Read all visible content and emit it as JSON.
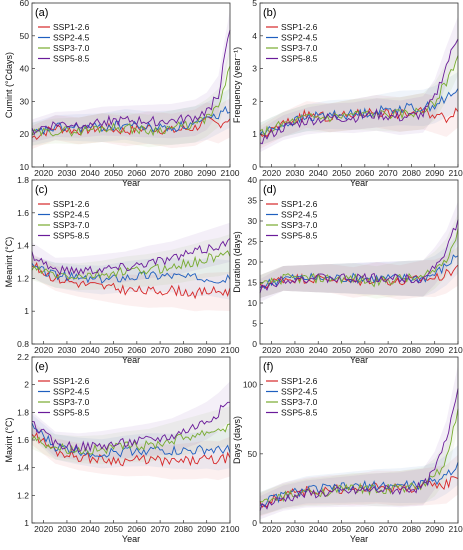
{
  "series_names": [
    "SSP1-2.6",
    "SSP2-4.5",
    "SSP3-7.0",
    "SSP5-8.5"
  ],
  "colors": {
    "SSP1-2.6": "#d62728",
    "SSP2-4.5": "#1f5fbf",
    "SSP3-7.0": "#77ab2f",
    "SSP5-8.5": "#6a1b9a"
  },
  "x_ticks": [
    2020,
    2030,
    2040,
    2050,
    2060,
    2070,
    2080,
    2090,
    2100
  ],
  "x_label": "Year",
  "chart_data": [
    {
      "panel": "(a)",
      "type": "line",
      "ylabel": "Cumint (°Cdays)",
      "xlim": [
        2015,
        2100
      ],
      "ylim": [
        10,
        60
      ],
      "yticks": [
        10,
        20,
        30,
        40,
        50,
        60
      ],
      "legend": "top-left",
      "x": [
        2015,
        2025,
        2035,
        2045,
        2055,
        2065,
        2075,
        2085,
        2090,
        2095,
        2100
      ],
      "series": [
        {
          "name": "SSP1-2.6",
          "values": [
            19,
            22,
            21,
            22,
            21,
            22,
            21,
            22,
            24,
            23,
            25
          ]
        },
        {
          "name": "SSP2-4.5",
          "values": [
            20,
            22,
            22,
            22,
            23,
            22,
            22,
            23,
            24,
            26,
            28
          ]
        },
        {
          "name": "SSP3-7.0",
          "values": [
            20,
            21,
            21,
            22,
            22,
            21,
            22,
            23,
            25,
            28,
            40
          ]
        },
        {
          "name": "SSP5-8.5",
          "values": [
            21,
            23,
            23,
            24,
            24,
            24,
            24,
            25,
            27,
            32,
            52
          ]
        }
      ]
    },
    {
      "panel": "(b)",
      "type": "line",
      "ylabel": "Frequency (year⁻¹)",
      "xlim": [
        2015,
        2100
      ],
      "ylim": [
        0,
        5
      ],
      "yticks": [
        0,
        1,
        2,
        3,
        4,
        5
      ],
      "legend": "top-left",
      "x": [
        2015,
        2025,
        2035,
        2045,
        2055,
        2065,
        2075,
        2085,
        2090,
        2095,
        2100
      ],
      "series": [
        {
          "name": "SSP1-2.6",
          "values": [
            0.9,
            1.3,
            1.6,
            1.5,
            1.6,
            1.7,
            1.6,
            1.7,
            1.6,
            1.5,
            1.8
          ]
        },
        {
          "name": "SSP2-4.5",
          "values": [
            1.0,
            1.3,
            1.5,
            1.6,
            1.6,
            1.7,
            1.8,
            1.8,
            1.9,
            2.1,
            2.3
          ]
        },
        {
          "name": "SSP3-7.0",
          "values": [
            1.0,
            1.3,
            1.5,
            1.5,
            1.6,
            1.6,
            1.6,
            1.7,
            2.0,
            2.6,
            3.4
          ]
        },
        {
          "name": "SSP5-8.5",
          "values": [
            0.8,
            1.2,
            1.4,
            1.5,
            1.5,
            1.6,
            1.5,
            1.6,
            2.1,
            3.1,
            4.0
          ]
        }
      ]
    },
    {
      "panel": "(c)",
      "type": "line",
      "ylabel": "Meanint (°C)",
      "xlim": [
        2015,
        2100
      ],
      "ylim": [
        0.8,
        1.8
      ],
      "yticks": [
        0.8,
        1,
        1.2,
        1.4,
        1.6,
        1.8
      ],
      "legend": "top-left",
      "x": [
        2015,
        2025,
        2035,
        2045,
        2055,
        2065,
        2075,
        2085,
        2090,
        2095,
        2100
      ],
      "series": [
        {
          "name": "SSP1-2.6",
          "values": [
            1.28,
            1.2,
            1.17,
            1.15,
            1.13,
            1.12,
            1.13,
            1.11,
            1.12,
            1.12,
            1.12
          ]
        },
        {
          "name": "SSP2-4.5",
          "values": [
            1.27,
            1.22,
            1.2,
            1.19,
            1.21,
            1.22,
            1.22,
            1.2,
            1.21,
            1.2,
            1.19
          ]
        },
        {
          "name": "SSP3-7.0",
          "values": [
            1.26,
            1.22,
            1.21,
            1.22,
            1.24,
            1.25,
            1.27,
            1.3,
            1.32,
            1.33,
            1.35
          ]
        },
        {
          "name": "SSP5-8.5",
          "values": [
            1.35,
            1.25,
            1.25,
            1.26,
            1.27,
            1.3,
            1.32,
            1.36,
            1.38,
            1.4,
            1.42
          ]
        }
      ]
    },
    {
      "panel": "(d)",
      "type": "line",
      "ylabel": "Duration (days)",
      "xlim": [
        2015,
        2100
      ],
      "ylim": [
        0,
        40
      ],
      "yticks": [
        0,
        5,
        10,
        15,
        20,
        25,
        30,
        35,
        40
      ],
      "legend": "top-left",
      "x": [
        2015,
        2025,
        2035,
        2045,
        2055,
        2065,
        2075,
        2085,
        2090,
        2095,
        2100
      ],
      "series": [
        {
          "name": "SSP1-2.6",
          "values": [
            14,
            16,
            16,
            16,
            15,
            16,
            15,
            16,
            16,
            17,
            19
          ]
        },
        {
          "name": "SSP2-4.5",
          "values": [
            14,
            16,
            16,
            16,
            16,
            16,
            16,
            16,
            17,
            19,
            22
          ]
        },
        {
          "name": "SSP3-7.0",
          "values": [
            14,
            16,
            16,
            16,
            16,
            15,
            16,
            16,
            18,
            21,
            27
          ]
        },
        {
          "name": "SSP5-8.5",
          "values": [
            13,
            16,
            16,
            16,
            16,
            16,
            16,
            16,
            19,
            23,
            30
          ]
        }
      ]
    },
    {
      "panel": "(e)",
      "type": "line",
      "ylabel": "Maxint (°C)",
      "xlim": [
        2015,
        2100
      ],
      "ylim": [
        1,
        2.2
      ],
      "yticks": [
        1,
        1.2,
        1.4,
        1.6,
        1.8,
        2,
        2.2
      ],
      "legend": "top-left",
      "x": [
        2015,
        2025,
        2035,
        2045,
        2055,
        2065,
        2075,
        2085,
        2090,
        2095,
        2100
      ],
      "series": [
        {
          "name": "SSP1-2.6",
          "values": [
            1.65,
            1.52,
            1.48,
            1.46,
            1.45,
            1.46,
            1.44,
            1.45,
            1.46,
            1.45,
            1.48
          ]
        },
        {
          "name": "SSP2-4.5",
          "values": [
            1.7,
            1.55,
            1.52,
            1.5,
            1.52,
            1.53,
            1.52,
            1.52,
            1.53,
            1.52,
            1.54
          ]
        },
        {
          "name": "SSP3-7.0",
          "values": [
            1.62,
            1.55,
            1.53,
            1.53,
            1.55,
            1.56,
            1.6,
            1.64,
            1.66,
            1.68,
            1.7
          ]
        },
        {
          "name": "SSP5-8.5",
          "values": [
            1.72,
            1.57,
            1.55,
            1.56,
            1.58,
            1.6,
            1.63,
            1.7,
            1.74,
            1.8,
            1.88
          ]
        }
      ]
    },
    {
      "panel": "(f)",
      "type": "line",
      "ylabel": "Days (days)",
      "xlim": [
        2015,
        2100
      ],
      "ylim": [
        0,
        120
      ],
      "yticks": [
        0,
        50,
        100
      ],
      "legend": "top-left",
      "x": [
        2015,
        2025,
        2035,
        2045,
        2055,
        2065,
        2075,
        2085,
        2090,
        2095,
        2100
      ],
      "series": [
        {
          "name": "SSP1-2.6",
          "values": [
            13,
            20,
            23,
            24,
            24,
            26,
            25,
            26,
            27,
            28,
            35
          ]
        },
        {
          "name": "SSP2-4.5",
          "values": [
            14,
            20,
            24,
            25,
            26,
            27,
            27,
            28,
            30,
            35,
            42
          ]
        },
        {
          "name": "SSP3-7.0",
          "values": [
            14,
            19,
            22,
            23,
            25,
            24,
            25,
            27,
            33,
            45,
            83
          ]
        },
        {
          "name": "SSP5-8.5",
          "values": [
            11,
            18,
            21,
            22,
            23,
            24,
            24,
            26,
            38,
            60,
            100
          ]
        }
      ]
    }
  ]
}
